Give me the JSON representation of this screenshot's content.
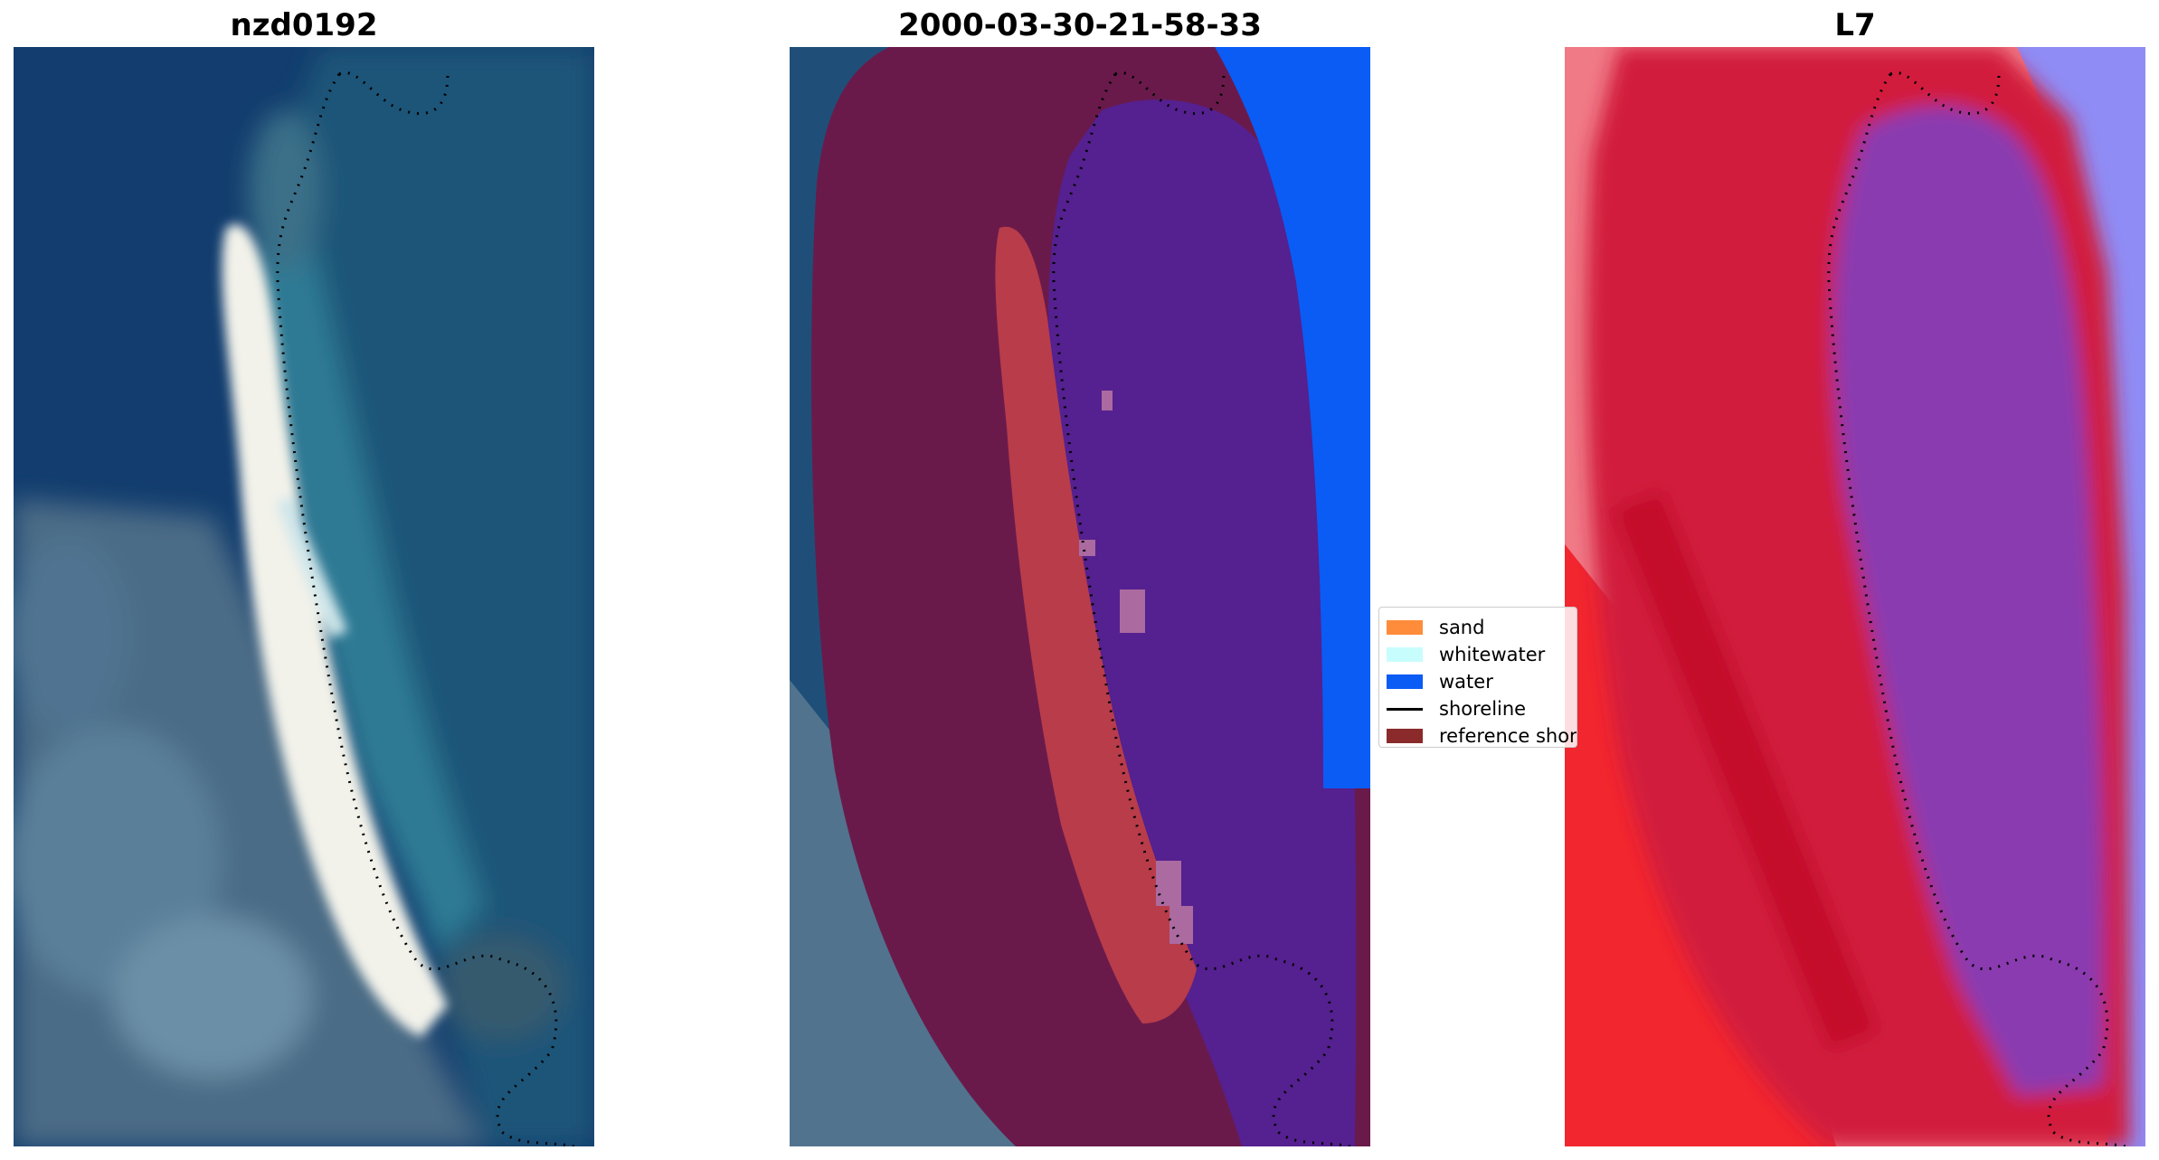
{
  "panels": [
    {
      "title": "nzd0192"
    },
    {
      "title": "2000-03-30-21-58-33"
    },
    {
      "title": "L7"
    }
  ],
  "legend": [
    {
      "label": "sand",
      "color": "#ff8c3a",
      "kind": "patch"
    },
    {
      "label": "whitewater",
      "color": "#c8fdfd",
      "kind": "patch"
    },
    {
      "label": "water",
      "color": "#0a5cf5",
      "kind": "patch"
    },
    {
      "label": "shoreline",
      "color": "#000000",
      "kind": "line"
    },
    {
      "label": "reference shoreline",
      "color": "#8b2a2a",
      "kind": "patch"
    }
  ],
  "colors": {
    "deep_water": "#123d6e",
    "shallow_water": "#2a6a8a",
    "reef": "#4d6f8c",
    "beach_sand": "#f2f2ea",
    "buffer_overlay": "#6a1a4a",
    "classified_sand": "#b83c4a",
    "classified_water": "#55208f",
    "open_water": "#0a5cf5",
    "index_land": "#d21a3c",
    "index_water": "#8a3ab0",
    "index_bright_water": "#8f8cf5"
  }
}
